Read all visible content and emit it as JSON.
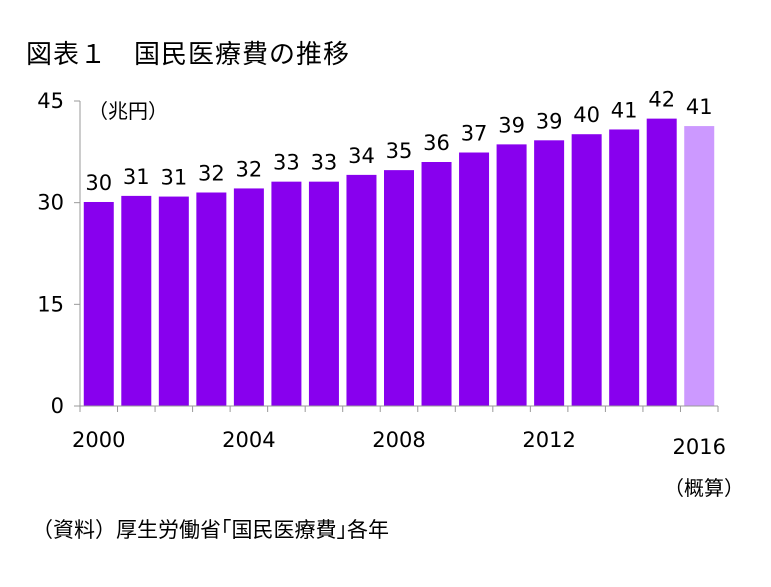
{
  "title": "図表１　国民医療費の推移",
  "unit_label": "（兆円）",
  "source_note": "（資料）厚生労働省｢国民医療費｣各年",
  "estimate_note": "（概算）",
  "colors": {
    "bar": "#8800ee",
    "bar_estimate": "#cc99ff",
    "axis": "#999999"
  },
  "chart_data": {
    "type": "bar",
    "title": "図表１　国民医療費の推移",
    "ylabel": "（兆円）",
    "xlabel": "",
    "ylim": [
      0,
      45
    ],
    "yticks": [
      0,
      15,
      30,
      45
    ],
    "categories": [
      "2000",
      "2001",
      "2002",
      "2003",
      "2004",
      "2005",
      "2006",
      "2007",
      "2008",
      "2009",
      "2010",
      "2011",
      "2012",
      "2013",
      "2014",
      "2015",
      "2016"
    ],
    "x_tick_labels": [
      "2000",
      "",
      "",
      "",
      "2004",
      "",
      "",
      "",
      "2008",
      "",
      "",
      "",
      "2012",
      "",
      "",
      "",
      "2016"
    ],
    "values": [
      30.1,
      31.0,
      30.9,
      31.5,
      32.1,
      33.1,
      33.1,
      34.1,
      34.8,
      36.0,
      37.4,
      38.6,
      39.2,
      40.1,
      40.8,
      42.4,
      41.3
    ],
    "data_labels": [
      "30",
      "31",
      "31",
      "32",
      "32",
      "33",
      "33",
      "34",
      "35",
      "36",
      "37",
      "39",
      "39",
      "40",
      "41",
      "42",
      "41"
    ],
    "estimate_index": 16,
    "grid": false,
    "legend": "none"
  }
}
